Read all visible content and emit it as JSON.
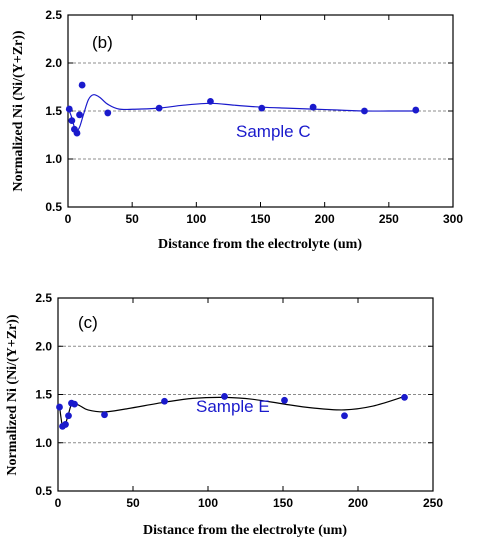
{
  "colors": {
    "marker": "#1a1acc",
    "curve_b": "#1a1acc",
    "curve_c": "#000000",
    "sample_label": "#1a1acc",
    "grid": "#8c8c8c"
  },
  "chart_data": [
    {
      "type": "scatter",
      "panel_label": "(b)",
      "annotation": "Sample C",
      "xlabel": "Distance from the electrolyte (um)",
      "ylabel": "Normalized Ni (Ni/(Y+Zr))",
      "xlim": [
        0,
        300
      ],
      "ylim": [
        0.5,
        2.5
      ],
      "xticks": [
        "0",
        "50",
        "100",
        "150",
        "200",
        "250",
        "300"
      ],
      "yticks": [
        "0.5",
        "1.0",
        "1.5",
        "2.0",
        "2.5"
      ],
      "grid": "horizontal-dashed",
      "points": {
        "x": [
          1,
          3,
          5,
          7,
          9,
          11,
          31,
          71,
          111,
          151,
          191,
          231,
          271
        ],
        "y": [
          1.52,
          1.4,
          1.31,
          1.27,
          1.46,
          1.77,
          1.48,
          1.53,
          1.6,
          1.53,
          1.54,
          1.5,
          1.51
        ]
      },
      "curve": {
        "x": [
          1,
          3,
          5,
          7,
          9,
          12,
          16,
          20,
          25,
          31,
          40,
          55,
          71,
          90,
          111,
          130,
          151,
          170,
          191,
          210,
          231,
          250,
          271
        ],
        "y": [
          1.5,
          1.43,
          1.33,
          1.3,
          1.33,
          1.46,
          1.62,
          1.67,
          1.64,
          1.57,
          1.52,
          1.52,
          1.53,
          1.56,
          1.58,
          1.56,
          1.54,
          1.53,
          1.52,
          1.51,
          1.5,
          1.5,
          1.5
        ]
      }
    },
    {
      "type": "scatter",
      "panel_label": "(c)",
      "annotation": "Sample E",
      "xlabel": "Distance from the electrolyte (um)",
      "ylabel": "Normalized Ni (Ni/(Y+Zr))",
      "xlim": [
        0,
        250
      ],
      "ylim": [
        0.5,
        2.5
      ],
      "xticks": [
        "0",
        "50",
        "100",
        "150",
        "200",
        "250"
      ],
      "yticks": [
        "0.5",
        "1.0",
        "1.5",
        "2.0",
        "2.5"
      ],
      "grid": "horizontal-dashed",
      "points": {
        "x": [
          1,
          3,
          5,
          7,
          9,
          11,
          31,
          71,
          111,
          151,
          191,
          231
        ],
        "y": [
          1.37,
          1.17,
          1.19,
          1.28,
          1.41,
          1.4,
          1.29,
          1.43,
          1.48,
          1.44,
          1.28,
          1.47
        ]
      },
      "curve": {
        "x": [
          1,
          2,
          3,
          5,
          7,
          9,
          11,
          15,
          20,
          31,
          45,
          71,
          90,
          111,
          130,
          151,
          170,
          191,
          210,
          231
        ],
        "y": [
          1.38,
          1.26,
          1.18,
          1.2,
          1.3,
          1.4,
          1.41,
          1.38,
          1.34,
          1.32,
          1.35,
          1.42,
          1.46,
          1.47,
          1.45,
          1.4,
          1.36,
          1.34,
          1.38,
          1.48
        ]
      }
    }
  ]
}
